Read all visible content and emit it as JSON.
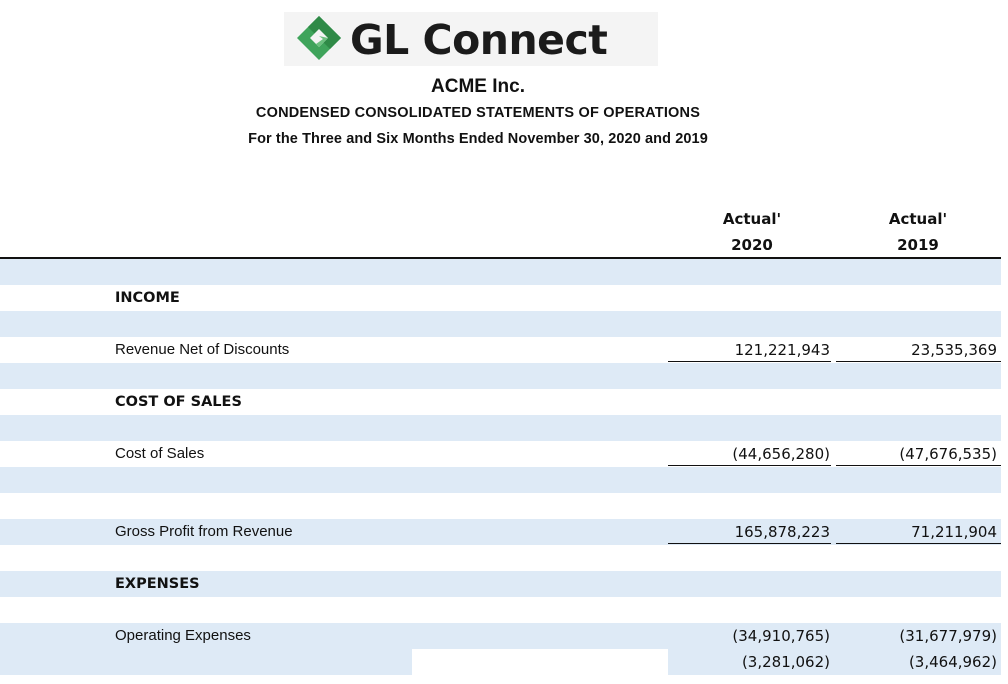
{
  "logo": {
    "text": "GL Connect",
    "brand_color": "#3fa45b"
  },
  "header": {
    "company": "ACME Inc.",
    "title": "CONDENSED CONSOLIDATED STATEMENTS OF OPERATIONS",
    "period": "For the Three and Six Months Ended November 30, 2020 and 2019"
  },
  "columns": [
    {
      "label": "Actual'",
      "year": "2020"
    },
    {
      "label": "Actual'",
      "year": "2019"
    }
  ],
  "rows": {
    "income_heading": "INCOME",
    "revenue": {
      "label": "Revenue Net of Discounts",
      "v2020": "121,221,943",
      "v2019": "23,535,369"
    },
    "cos_heading": "COST OF SALES",
    "cost_of_sales": {
      "label": "Cost of Sales",
      "v2020": "(44,656,280)",
      "v2019": "(47,676,535)"
    },
    "gross_profit": {
      "label": "Gross Profit from Revenue",
      "v2020": "165,878,223",
      "v2019": "71,211,904"
    },
    "expenses_heading": "EXPENSES",
    "operating_expenses": {
      "label": "Operating Expenses",
      "v2020": "(34,910,765)",
      "v2019": "(31,677,979)"
    },
    "next_line": {
      "v2020": "(3,281,062)",
      "v2019": "(3,464,962)"
    }
  }
}
